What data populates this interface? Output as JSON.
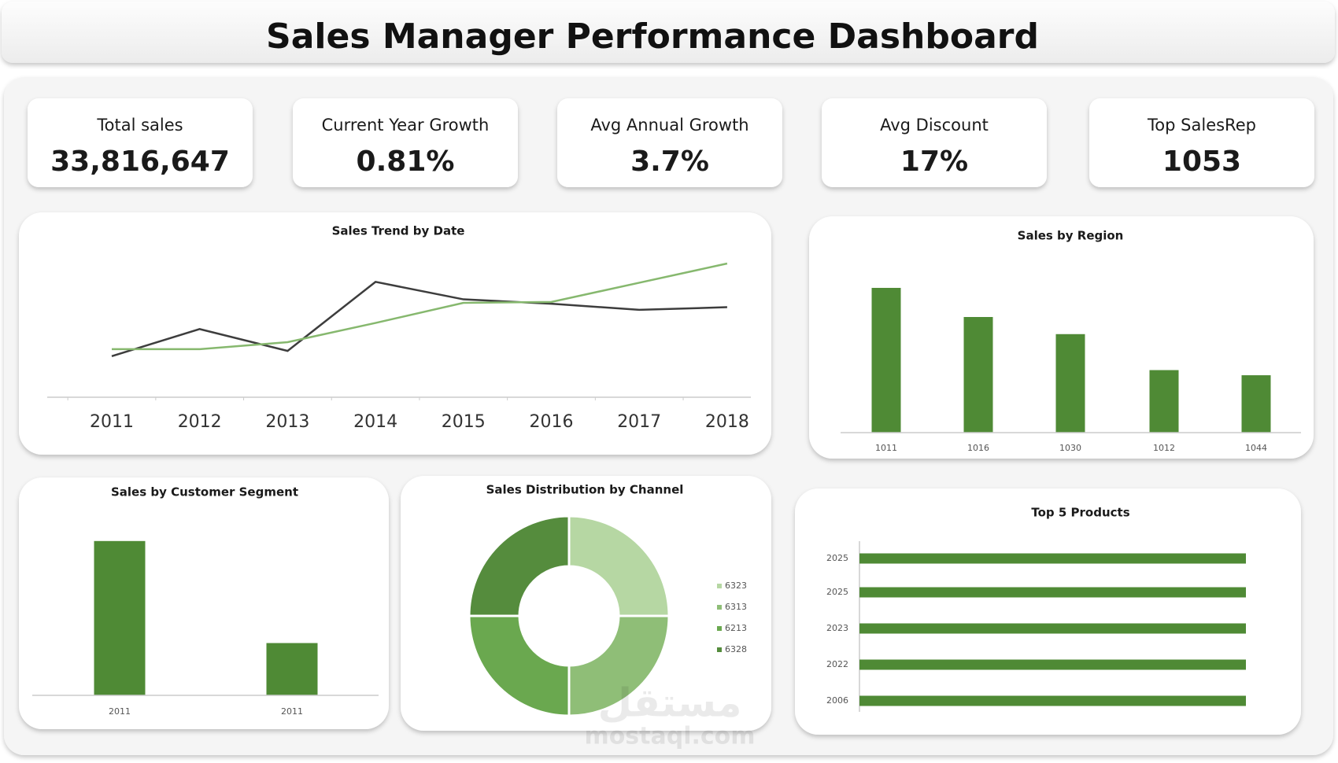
{
  "header": {
    "title": "Sales Manager Performance Dashboard"
  },
  "kpis": [
    {
      "label": "Total sales",
      "value": "33,816,647"
    },
    {
      "label": "Current Year Growth",
      "value": "0.81%"
    },
    {
      "label": "Avg Annual Growth",
      "value": "3.7%"
    },
    {
      "label": "Avg Discount",
      "value": "17%"
    },
    {
      "label": "Top SalesRep",
      "value": "1053"
    }
  ],
  "chart_data": [
    {
      "type": "line",
      "title": "Sales Trend by Date",
      "categories": [
        "2011",
        "2012",
        "2013",
        "2014",
        "2015",
        "2016",
        "2017",
        "2018"
      ],
      "series": [
        {
          "color": "#3d3d3d",
          "values": [
            47,
            78,
            53,
            132,
            112,
            107,
            100,
            103
          ]
        },
        {
          "color": "#86b86e",
          "values": [
            55,
            55,
            63,
            85,
            108,
            109,
            131,
            153
          ]
        }
      ],
      "ylim": [
        0,
        180
      ]
    },
    {
      "type": "bar",
      "title": "Sales by Region",
      "categories": [
        "1011",
        "1016",
        "1030",
        "1012",
        "1044"
      ],
      "values": [
        169,
        135,
        115,
        73,
        67
      ],
      "color": "#4f8a35",
      "ylim": [
        0,
        180
      ]
    },
    {
      "type": "bar",
      "title": "Sales by Customer Segment",
      "categories": [
        "2011",
        "2011"
      ],
      "values": [
        180,
        61
      ],
      "color": "#4f8a35",
      "ylim": [
        0,
        200
      ]
    },
    {
      "type": "donut",
      "title": "Sales Distribution by Channel",
      "categories": [
        "6323",
        "6313",
        "6213",
        "6328"
      ],
      "values": [
        25,
        25,
        25,
        25
      ],
      "colors": [
        "#b6d7a3",
        "#8fbe77",
        "#6aa84f",
        "#558c3d"
      ]
    },
    {
      "type": "barh",
      "title": "Top 5 Products",
      "categories": [
        "2025",
        "2025",
        "2023",
        "2022",
        "2006"
      ],
      "values": [
        100,
        100,
        100,
        100,
        100
      ],
      "color": "#4f8a35",
      "xlim": [
        0,
        100
      ]
    }
  ],
  "watermark": {
    "arabic": "مستقل",
    "latin": "mostaql.com"
  }
}
